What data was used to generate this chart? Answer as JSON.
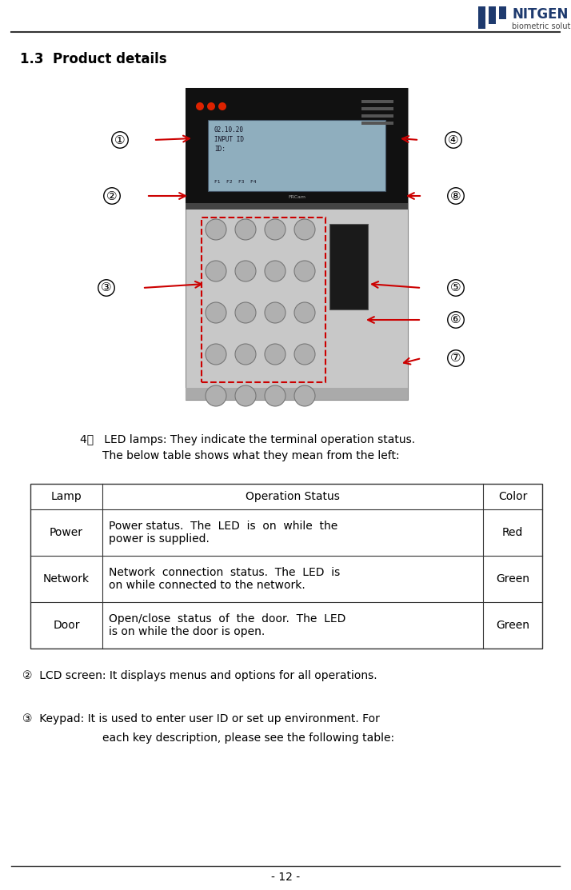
{
  "page_number": "- 12 -",
  "section_title": "1.3  Product details",
  "section_title_fontsize": 12,
  "body_fontsize": 10,
  "small_fontsize": 8.5,
  "logo_text_nitgen": "NITGEN",
  "logo_text_sub": "biometric solutions",
  "table_header": [
    "Lamp",
    "Operation Status",
    "Color"
  ],
  "table_rows": [
    [
      "Power",
      "Power status.  The  LED  is  on  while  the\npower is supplied.",
      "Red"
    ],
    [
      "Network",
      "Network  connection  status.  The  LED  is\non while connected to the network.",
      "Green"
    ],
    [
      "Door",
      "Open/close  status  of  the  door.  The  LED\nis on while the door is open.",
      "Green"
    ]
  ],
  "point2_text": "②  LCD screen: It displays menus and options for all operations.",
  "point3_line1": "③  Keypad: It is used to enter user ID or set up environment. For",
  "point3_line2": "each key description, please see the following table:",
  "led_intro_line1": "4．   LED lamps: They indicate the terminal operation status.",
  "led_intro_line2": "The below table shows what they mean from the left:",
  "bg_color": "#ffffff",
  "text_color": "#000000",
  "red_color": "#cc0000"
}
